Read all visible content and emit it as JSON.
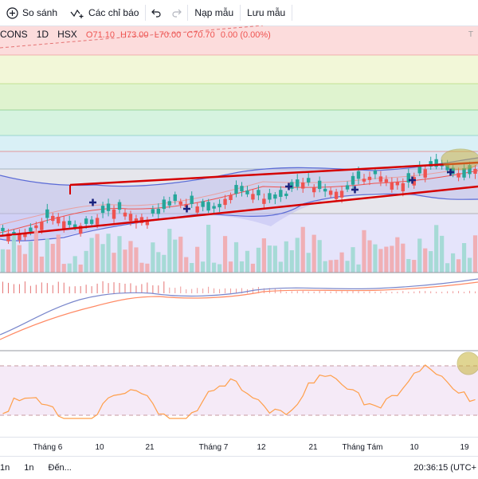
{
  "toolbar": {
    "compare_label": "So sánh",
    "indicators_label": "Các chỉ báo",
    "load_label": "Nạp mẫu",
    "save_label": "Lưu mẫu"
  },
  "legend": {
    "symbol": "CONS",
    "interval": "1D",
    "exchange": "HSX",
    "open": "O71.10",
    "high": "H73.00",
    "low": "L70.00",
    "close": "C70.70",
    "change": "0.00 (0.00%)",
    "corner_mark": "T"
  },
  "xaxis": {
    "labels": [
      "Tháng 6",
      "10",
      "21",
      "Tháng 7",
      "12",
      "21",
      "Tháng Tám",
      "10",
      "19"
    ]
  },
  "bottom": {
    "range_1": "1n",
    "range_2": "1n",
    "goto_label": "Đến...",
    "clock": "20:36:15 (UTC+"
  },
  "colors": {
    "up": "#26a69a",
    "down": "#ef5350",
    "trendline": "#d50000",
    "bollinger": "#5b6bd6",
    "macd": "#7986cb",
    "signal": "#ff8a65",
    "rsi": "#ff9f4a",
    "highlight": "#c7b43a"
  }
}
